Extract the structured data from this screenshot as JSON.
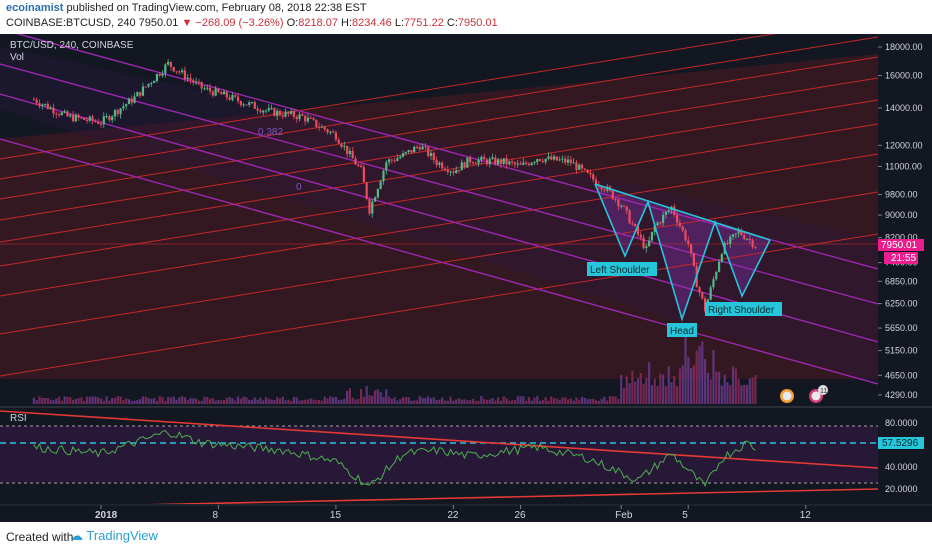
{
  "header": {
    "author": "ecoinamist",
    "published_text": "published on TradingView.com, February 08, 2018 22:38 EST",
    "symbol": "COINBASE:BTCUSD, 240",
    "last": "7950.01",
    "change": "−268.09 (−3.26%)",
    "open_label": "O:",
    "open": "8218.07",
    "high_label": "H:",
    "high": "8234.46",
    "low_label": "L:",
    "low": "7751.22",
    "close_label": "C:",
    "close": "7950.01"
  },
  "pane": {
    "title": "BTC/USD, 240, COINBASE",
    "vol_label": "Vol",
    "rsi_label": "RSI",
    "fib_label_1": "0.382",
    "fib_label_2": "0",
    "price_tag": "7950.01",
    "countdown_tag": "21:55",
    "rsi_value_tag": "57.5296",
    "badge_count": "11"
  },
  "annotations": {
    "left_shoulder": "Left Shoulder",
    "head": "Head",
    "right_shoulder": "Right Shoulder"
  },
  "footer": {
    "created_with": "Created with",
    "brand": "TradingView"
  },
  "colors": {
    "background": "#131722",
    "up": "#53b987",
    "down": "#eb4d5c",
    "channel": "#9c27b0",
    "fib": "#c62828",
    "pattern": "#26c6da",
    "rsi_line": "#4caf50"
  },
  "chart_data": [
    {
      "type": "candlestick",
      "title": "BTC/USD, 240, COINBASE",
      "y_axis_ticks": [
        18000,
        16000,
        14000,
        12000,
        11000,
        9800,
        9000,
        8200,
        7400,
        6850,
        6250,
        5650,
        5150,
        4650,
        4290
      ],
      "y_axis_labels": [
        "18000.00",
        "16000.00",
        "14000.00",
        "12000.00",
        "11000.00",
        "9800.00",
        "9000.00",
        "8200.00",
        "7400.00",
        "6850.00",
        "6250.00",
        "5650.00",
        "5150.00",
        "4650.00",
        "4290.00"
      ],
      "y_scale": "log",
      "ylim": [
        4200,
        18600
      ],
      "x_axis_labels": [
        "2018",
        "8",
        "15",
        "22",
        "26",
        "Feb",
        "5",
        "12"
      ],
      "approx_close_path": [
        {
          "day": -3,
          "value": 14500
        },
        {
          "day": -1,
          "value": 13500
        },
        {
          "day": 1,
          "value": 13200
        },
        {
          "day": 3,
          "value": 14600
        },
        {
          "day": 5,
          "value": 16800
        },
        {
          "day": 7,
          "value": 15200
        },
        {
          "day": 9,
          "value": 14500
        },
        {
          "day": 11,
          "value": 13800
        },
        {
          "day": 13,
          "value": 13500
        },
        {
          "day": 15,
          "value": 12500
        },
        {
          "day": 16.5,
          "value": 10800
        },
        {
          "day": 17,
          "value": 9200
        },
        {
          "day": 18,
          "value": 11200
        },
        {
          "day": 19,
          "value": 11500
        },
        {
          "day": 20,
          "value": 12000
        },
        {
          "day": 21,
          "value": 11200
        },
        {
          "day": 22,
          "value": 10800
        },
        {
          "day": 23,
          "value": 11300
        },
        {
          "day": 25,
          "value": 11200
        },
        {
          "day": 26,
          "value": 11000
        },
        {
          "day": 27,
          "value": 11400
        },
        {
          "day": 29,
          "value": 11200
        },
        {
          "day": 30,
          "value": 10600
        },
        {
          "day": 31,
          "value": 10100
        },
        {
          "day": 32,
          "value": 9400
        },
        {
          "day": 33,
          "value": 8300
        },
        {
          "day": 33.5,
          "value": 7800
        },
        {
          "day": 34,
          "value": 8600
        },
        {
          "day": 35,
          "value": 9300
        },
        {
          "day": 36,
          "value": 8000
        },
        {
          "day": 36.5,
          "value": 6800
        },
        {
          "day": 37,
          "value": 6100
        },
        {
          "day": 37.5,
          "value": 6900
        },
        {
          "day": 38,
          "value": 7800
        },
        {
          "day": 39,
          "value": 8400
        },
        {
          "day": 39.5,
          "value": 8200
        },
        {
          "day": 40,
          "value": 7950
        }
      ],
      "last_price": 7950.01
    },
    {
      "type": "line",
      "title": "RSI",
      "y_axis_labels": [
        "80.0000",
        "60.0000",
        "40.0000",
        "20.0000"
      ],
      "ylim": [
        10,
        90
      ],
      "bands": [
        70,
        30
      ],
      "current_value": 57.5296,
      "approx_path": [
        {
          "day": -3,
          "value": 58
        },
        {
          "day": 1,
          "value": 52
        },
        {
          "day": 5,
          "value": 72
        },
        {
          "day": 7,
          "value": 62
        },
        {
          "day": 12,
          "value": 55
        },
        {
          "day": 15,
          "value": 45
        },
        {
          "day": 17,
          "value": 22
        },
        {
          "day": 19,
          "value": 52
        },
        {
          "day": 21,
          "value": 55
        },
        {
          "day": 23,
          "value": 50
        },
        {
          "day": 27,
          "value": 58
        },
        {
          "day": 30,
          "value": 48
        },
        {
          "day": 33,
          "value": 28
        },
        {
          "day": 35,
          "value": 52
        },
        {
          "day": 37,
          "value": 22
        },
        {
          "day": 38,
          "value": 48
        },
        {
          "day": 39.5,
          "value": 62
        },
        {
          "day": 40,
          "value": 57.5
        }
      ]
    }
  ]
}
